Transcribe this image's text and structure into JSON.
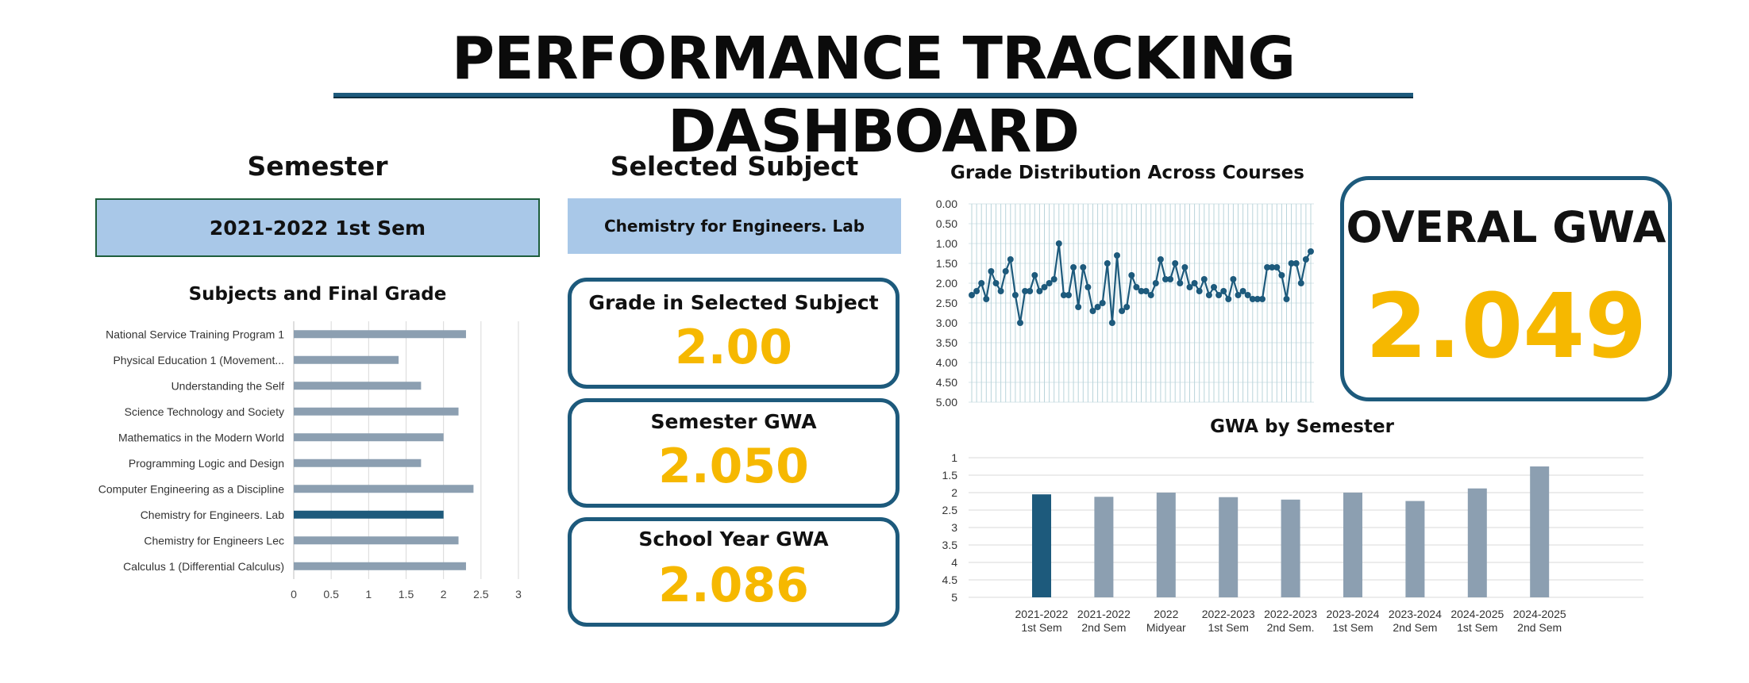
{
  "title": "PERFORMANCE TRACKING DASHBOARD",
  "semester": {
    "heading": "Semester",
    "value": "2021-2022 1st Sem"
  },
  "selected_subject": {
    "heading": "Selected Subject",
    "value": "Chemistry for Engineers. Lab"
  },
  "cards": {
    "grade_selected": {
      "label": "Grade in Selected Subject",
      "value": "2.00"
    },
    "semester_gwa": {
      "label": "Semester GWA",
      "value": "2.050"
    },
    "school_year_gwa": {
      "label": "School Year GWA",
      "value": "2.086"
    },
    "overall_gwa": {
      "label": "OVERAL GWA",
      "value": "2.049"
    }
  },
  "colors": {
    "primary": "#1d5a7c",
    "accent": "#f6b800",
    "bar_grey": "#8c9fb1",
    "selection_fill": "#a9c8e8"
  },
  "chart_data": [
    {
      "type": "bar",
      "orientation": "horizontal",
      "title": "Subjects and Final Grade",
      "categories": [
        "National Service Training Program 1",
        "Physical Education 1 (Movement...",
        "Understanding the Self",
        "Science Technology and Society",
        "Mathematics in the Modern World",
        "Programming Logic and Design",
        "Computer Engineering as a Discipline",
        "Chemistry for Engineers. Lab",
        "Chemistry for Engineers Lec",
        "Calculus 1 (Differential Calculus)"
      ],
      "values": [
        2.3,
        1.4,
        1.7,
        2.2,
        2.0,
        1.7,
        2.4,
        2.0,
        2.2,
        2.3
      ],
      "highlight": "Chemistry for Engineers. Lab",
      "xlim": [
        0,
        3
      ],
      "xticks": [
        "0",
        "0.5",
        "1",
        "1.5",
        "2",
        "2.5",
        "3"
      ],
      "grid": true
    },
    {
      "type": "line",
      "title": "Grade Distribution Across Courses",
      "ylim": [
        0,
        5
      ],
      "y_reversed": true,
      "yticks": [
        "0.00",
        "0.50",
        "1.00",
        "1.50",
        "2.00",
        "2.50",
        "3.00",
        "3.50",
        "4.00",
        "4.50",
        "5.00"
      ],
      "values": [
        2.3,
        2.2,
        2.0,
        2.4,
        1.7,
        2.0,
        2.2,
        1.7,
        1.4,
        2.3,
        3.0,
        2.2,
        2.2,
        1.8,
        2.2,
        2.1,
        2.0,
        1.9,
        1.0,
        2.3,
        2.3,
        1.6,
        2.6,
        1.6,
        2.1,
        2.7,
        2.6,
        2.5,
        1.5,
        3.0,
        1.3,
        2.7,
        2.6,
        1.8,
        2.1,
        2.2,
        2.2,
        2.3,
        2.0,
        1.4,
        1.9,
        1.9,
        1.5,
        2.0,
        1.6,
        2.1,
        2.0,
        2.2,
        1.9,
        2.3,
        2.1,
        2.3,
        2.2,
        2.4,
        1.9,
        2.3,
        2.2,
        2.3,
        2.4,
        2.4,
        2.4,
        1.6,
        1.6,
        1.6,
        1.8,
        2.4,
        1.5,
        1.5,
        2.0,
        1.4,
        1.2
      ],
      "grid": true
    },
    {
      "type": "bar",
      "title": "GWA by Semester",
      "categories": [
        "2021-2022\n1st Sem",
        "2021-2022\n2nd Sem",
        "2022\nMidyear",
        "2022-2023\n1st Sem",
        "2022-2023\n2nd Sem.",
        "2023-2024\n1st Sem",
        "2023-2024\n2nd Sem",
        "2024-2025\n1st Sem",
        "2024-2025\n2nd Sem"
      ],
      "values": [
        2.05,
        2.12,
        2.0,
        2.13,
        2.2,
        2.0,
        2.24,
        1.88,
        1.25
      ],
      "highlight": "2021-2022\n1st Sem",
      "ylim": [
        1,
        5
      ],
      "y_reversed": true,
      "yticks": [
        "1",
        "1.5",
        "2",
        "2.5",
        "3",
        "3.5",
        "4",
        "4.5",
        "5"
      ],
      "grid": true
    }
  ]
}
